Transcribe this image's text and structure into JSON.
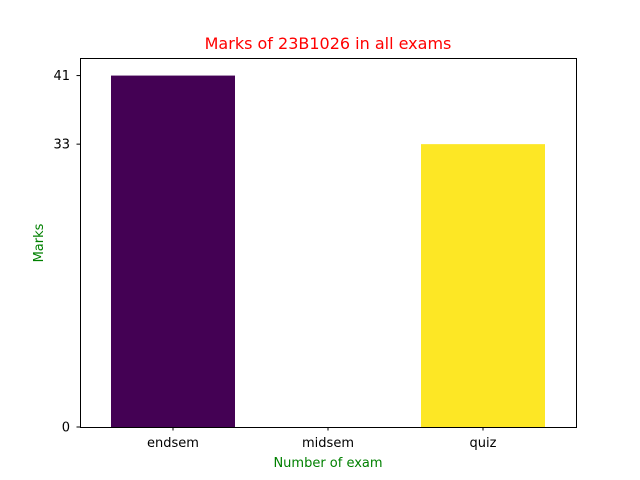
{
  "chart_data": {
    "type": "bar",
    "title": "Marks of 23B1026 in all exams",
    "xlabel": "Number of exam",
    "ylabel": "Marks",
    "categories": [
      "endsem",
      "midsem",
      "quiz"
    ],
    "values": [
      41,
      0,
      33
    ],
    "bar_colors": [
      "#440154",
      "#21918c",
      "#fde725"
    ],
    "yticks": [
      0,
      33,
      41
    ],
    "ylim": [
      0,
      43.05
    ],
    "grid": false,
    "legend": "none",
    "title_color": "#ff0000",
    "axis_label_color": "#008000"
  }
}
